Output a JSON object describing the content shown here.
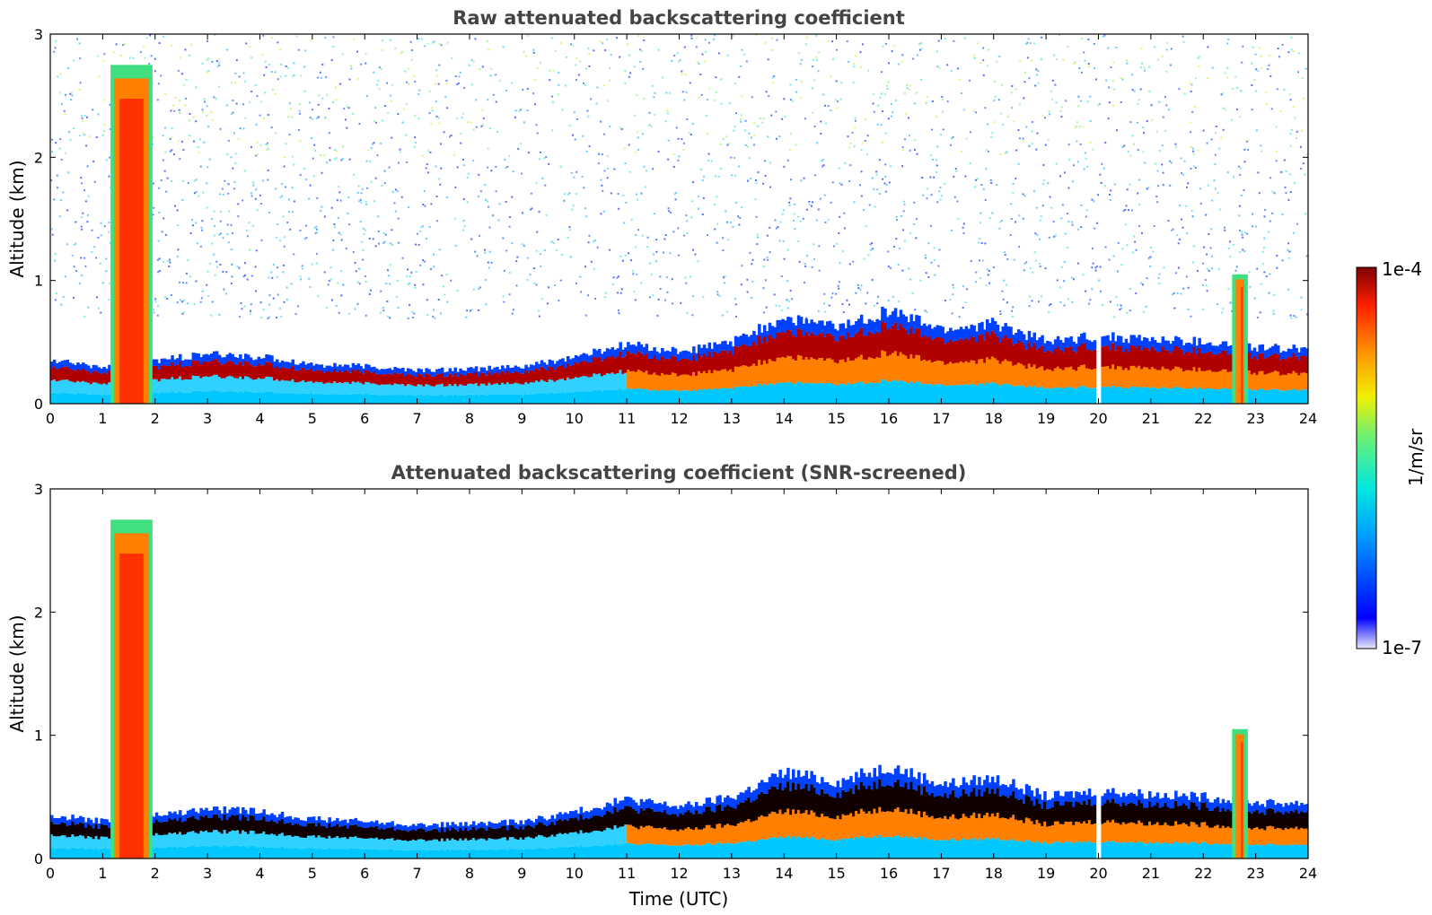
{
  "chart_data": [
    {
      "type": "heatmap",
      "title": "Raw attenuated backscattering coefficient",
      "xlabel": "",
      "ylabel": "Altitude (km)",
      "xlim": [
        0,
        24
      ],
      "ylim": [
        0,
        3
      ],
      "x_ticks": [
        "0",
        "1",
        "2",
        "3",
        "4",
        "5",
        "6",
        "7",
        "8",
        "9",
        "10",
        "11",
        "12",
        "13",
        "14",
        "15",
        "16",
        "17",
        "18",
        "19",
        "20",
        "21",
        "22",
        "23",
        "24"
      ],
      "y_ticks": [
        "0",
        "1",
        "2",
        "3"
      ],
      "grid": false,
      "screened": false,
      "boundary_layer_top_km": [
        {
          "t": 0,
          "z": 0.35
        },
        {
          "t": 1,
          "z": 0.3
        },
        {
          "t": 2,
          "z": 0.35
        },
        {
          "t": 3,
          "z": 0.4
        },
        {
          "t": 4,
          "z": 0.38
        },
        {
          "t": 5,
          "z": 0.32
        },
        {
          "t": 6,
          "z": 0.3
        },
        {
          "t": 7,
          "z": 0.27
        },
        {
          "t": 8,
          "z": 0.28
        },
        {
          "t": 9,
          "z": 0.3
        },
        {
          "t": 10,
          "z": 0.38
        },
        {
          "t": 11,
          "z": 0.48
        },
        {
          "t": 12,
          "z": 0.42
        },
        {
          "t": 13,
          "z": 0.5
        },
        {
          "t": 14,
          "z": 0.7
        },
        {
          "t": 15,
          "z": 0.62
        },
        {
          "t": 16,
          "z": 0.75
        },
        {
          "t": 17,
          "z": 0.6
        },
        {
          "t": 18,
          "z": 0.65
        },
        {
          "t": 19,
          "z": 0.5
        },
        {
          "t": 20,
          "z": 0.55
        },
        {
          "t": 21,
          "z": 0.52
        },
        {
          "t": 22,
          "z": 0.5
        },
        {
          "t": 23,
          "z": 0.45
        },
        {
          "t": 24,
          "z": 0.45
        }
      ],
      "cloud_events": [
        {
          "start_utc": 1.15,
          "end_utc": 1.95,
          "top_km": 2.75
        },
        {
          "start_utc": 22.55,
          "end_utc": 22.85,
          "top_km": 1.05
        }
      ],
      "data_gap_utc": [
        19.95,
        20.05
      ]
    },
    {
      "type": "heatmap",
      "title": "Attenuated backscattering coefficient (SNR-screened)",
      "xlabel": "Time (UTC)",
      "ylabel": "Altitude (km)",
      "xlim": [
        0,
        24
      ],
      "ylim": [
        0,
        3
      ],
      "x_ticks": [
        "0",
        "1",
        "2",
        "3",
        "4",
        "5",
        "6",
        "7",
        "8",
        "9",
        "10",
        "11",
        "12",
        "13",
        "14",
        "15",
        "16",
        "17",
        "18",
        "19",
        "20",
        "21",
        "22",
        "23",
        "24"
      ],
      "y_ticks": [
        "0",
        "1",
        "2",
        "3"
      ],
      "grid": false,
      "screened": true,
      "boundary_layer_top_km": [
        {
          "t": 0,
          "z": 0.35
        },
        {
          "t": 1,
          "z": 0.3
        },
        {
          "t": 2,
          "z": 0.35
        },
        {
          "t": 3,
          "z": 0.4
        },
        {
          "t": 4,
          "z": 0.38
        },
        {
          "t": 5,
          "z": 0.32
        },
        {
          "t": 6,
          "z": 0.3
        },
        {
          "t": 7,
          "z": 0.27
        },
        {
          "t": 8,
          "z": 0.28
        },
        {
          "t": 9,
          "z": 0.3
        },
        {
          "t": 10,
          "z": 0.38
        },
        {
          "t": 11,
          "z": 0.48
        },
        {
          "t": 12,
          "z": 0.42
        },
        {
          "t": 13,
          "z": 0.5
        },
        {
          "t": 14,
          "z": 0.7
        },
        {
          "t": 15,
          "z": 0.62
        },
        {
          "t": 16,
          "z": 0.75
        },
        {
          "t": 17,
          "z": 0.6
        },
        {
          "t": 18,
          "z": 0.65
        },
        {
          "t": 19,
          "z": 0.5
        },
        {
          "t": 20,
          "z": 0.55
        },
        {
          "t": 21,
          "z": 0.52
        },
        {
          "t": 22,
          "z": 0.5
        },
        {
          "t": 23,
          "z": 0.45
        },
        {
          "t": 24,
          "z": 0.45
        }
      ],
      "cloud_events": [
        {
          "start_utc": 1.15,
          "end_utc": 1.95,
          "top_km": 2.75
        },
        {
          "start_utc": 22.55,
          "end_utc": 22.85,
          "top_km": 1.05
        }
      ],
      "data_gap_utc": [
        19.95,
        20.05
      ]
    }
  ],
  "colorbar": {
    "label": "1/m/sr",
    "max_label": "1e-4",
    "min_label": "1e-7",
    "scale": "log",
    "colors": [
      "#e8e8f8",
      "#0000ff",
      "#00a0ff",
      "#00e8e0",
      "#70f070",
      "#f0f000",
      "#ff9000",
      "#ff2000",
      "#800000"
    ]
  }
}
